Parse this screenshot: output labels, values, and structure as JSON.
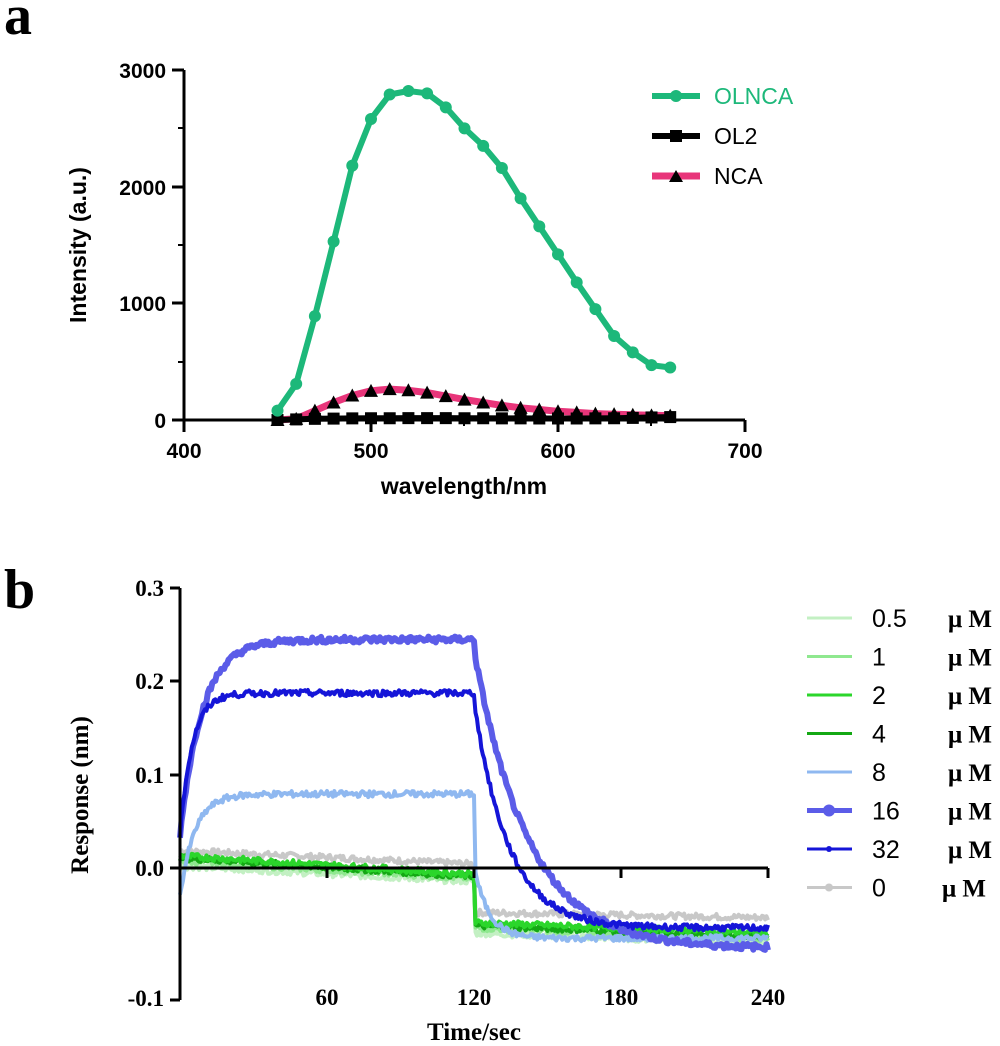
{
  "panels": {
    "a": {
      "letter": "a"
    },
    "b": {
      "letter": "b"
    }
  },
  "chart_data": [
    {
      "type": "line",
      "panel": "a",
      "title": "",
      "xlabel": "wavelength/nm",
      "ylabel": "Intensity (a.u.)",
      "xlim": [
        400,
        700
      ],
      "ylim": [
        0,
        3000
      ],
      "xticks": [
        "400",
        "500",
        "600",
        "700"
      ],
      "yticks": [
        "0",
        "1000",
        "2000",
        "3000"
      ],
      "legend_position": "top-right",
      "x": [
        450,
        460,
        470,
        480,
        490,
        500,
        510,
        520,
        530,
        540,
        550,
        560,
        570,
        580,
        590,
        600,
        610,
        620,
        630,
        640,
        650,
        660
      ],
      "series": [
        {
          "name": "OLNCA",
          "color": "#1db87a",
          "marker": "circle",
          "values": [
            80,
            310,
            890,
            1530,
            2180,
            2580,
            2790,
            2820,
            2800,
            2680,
            2500,
            2350,
            2160,
            1900,
            1660,
            1420,
            1180,
            950,
            720,
            580,
            470,
            450
          ]
        },
        {
          "name": "OL2",
          "color": "#000000",
          "marker": "square",
          "values": [
            0,
            5,
            10,
            12,
            14,
            15,
            15,
            16,
            16,
            16,
            15,
            15,
            14,
            14,
            13,
            13,
            13,
            14,
            15,
            18,
            22,
            25
          ]
        },
        {
          "name": "NCA",
          "color": "#e8357a",
          "marker": "triangle",
          "values": [
            0,
            10,
            80,
            150,
            210,
            250,
            265,
            255,
            235,
            205,
            175,
            150,
            125,
            105,
            90,
            75,
            65,
            55,
            50,
            45,
            40,
            38
          ]
        }
      ]
    },
    {
      "type": "line",
      "panel": "b",
      "title": "",
      "xlabel": "Time/sec",
      "ylabel": "Response (nm)",
      "xlim": [
        0,
        240
      ],
      "ylim": [
        -0.1,
        0.3
      ],
      "xticks": [
        "60",
        "120",
        "180",
        "240"
      ],
      "yticks": [
        "-0.1",
        "0.0",
        "0.1",
        "0.2",
        "0.3"
      ],
      "legend_position": "right",
      "unit": "μ M",
      "series": [
        {
          "name": "0.5",
          "color": "#c3f0c3",
          "assoc_start": 0.03,
          "assoc_end": 0.015,
          "dissoc_start": -0.035,
          "dissoc_end": -0.045,
          "rise_tau": 0,
          "decay_tau": 0
        },
        {
          "name": "1",
          "color": "#8fe88f",
          "assoc_start": 0.035,
          "assoc_end": 0.018,
          "dissoc_start": -0.03,
          "dissoc_end": -0.04,
          "rise_tau": 0,
          "decay_tau": 0
        },
        {
          "name": "2",
          "color": "#2bd62b",
          "assoc_start": 0.04,
          "assoc_end": 0.022,
          "dissoc_start": -0.025,
          "dissoc_end": -0.035,
          "rise_tau": 0,
          "decay_tau": 0
        },
        {
          "name": "4",
          "color": "#14a814",
          "assoc_start": 0.038,
          "assoc_end": 0.02,
          "dissoc_start": -0.028,
          "dissoc_end": -0.038,
          "rise_tau": 0,
          "decay_tau": 0
        },
        {
          "name": "8",
          "color": "#8fb8f0",
          "assoc_start": 0.0,
          "assoc_end": 0.1,
          "dissoc_start": 0.03,
          "dissoc_end": -0.04,
          "rise_tau": 6,
          "decay_tau": 6
        },
        {
          "name": "16",
          "color": "#5b5ce8",
          "assoc_start": 0.06,
          "assoc_end": 0.25,
          "dissoc_start": 0.24,
          "dissoc_end": -0.05,
          "rise_tau": 9,
          "decay_tau": 22
        },
        {
          "name": "32",
          "color": "#1515d8",
          "assoc_start": 0.06,
          "assoc_end": 0.198,
          "dissoc_start": 0.19,
          "dissoc_end": -0.03,
          "rise_tau": 5,
          "decay_tau": 14
        },
        {
          "name": "0",
          "color": "#c8c8c8",
          "assoc_start": 0.045,
          "assoc_end": 0.032,
          "dissoc_start": -0.015,
          "dissoc_end": -0.02,
          "rise_tau": 0,
          "decay_tau": 0
        }
      ]
    }
  ]
}
